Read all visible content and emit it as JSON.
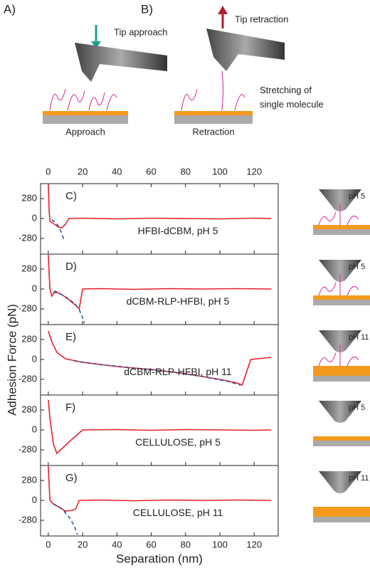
{
  "schematic": {
    "panel_a": "A)",
    "panel_b": "B)",
    "approach_arrow": "Tip approach",
    "retraction_arrow": "Tip retraction",
    "stretch_note": "Stretching of single molecule",
    "approach_caption": "Approach",
    "retraction_caption": "Retraction"
  },
  "chart_data": [
    {
      "type": "line",
      "label": "C)",
      "subtitle": "HFBI-dCBM, pH 5",
      "side_label": "pH 5",
      "xlim": [
        -4.5,
        134
      ],
      "xticks": [
        0,
        20,
        40,
        60,
        80,
        100,
        120
      ],
      "ylim": [
        -500,
        490
      ],
      "yticks": [
        280,
        0,
        -280
      ],
      "series": [
        {
          "color": "#e8202a",
          "x": [
            0,
            0.5,
            1,
            3,
            6,
            8,
            10,
            12,
            20,
            40,
            60,
            80,
            100,
            120,
            130
          ],
          "values": [
            480,
            100,
            -40,
            -70,
            -120,
            -130,
            -80,
            0,
            5,
            -5,
            5,
            0,
            -5,
            5,
            0
          ]
        },
        {
          "color": "#2a4fa8",
          "dash": true,
          "x": [
            2,
            4,
            6,
            7,
            8,
            9
          ],
          "values": [
            -20,
            -50,
            -110,
            -160,
            -220,
            -290
          ]
        }
      ]
    },
    {
      "type": "line",
      "label": "D)",
      "subtitle": "dCBM-RLP-HFBI, pH 5",
      "side_label": "pH 5",
      "xlim": [
        -4.5,
        134
      ],
      "xticks": [
        0,
        20,
        40,
        60,
        80,
        100,
        120
      ],
      "ylim": [
        -500,
        490
      ],
      "yticks": [
        280,
        0,
        -280
      ],
      "series": [
        {
          "color": "#e8202a",
          "x": [
            0,
            0.5,
            1,
            2,
            4,
            8,
            12,
            16,
            18,
            20,
            30,
            50,
            70,
            90,
            110,
            130
          ],
          "values": [
            480,
            200,
            0,
            -100,
            -30,
            -80,
            -150,
            -230,
            -280,
            0,
            5,
            -5,
            5,
            0,
            5,
            0
          ]
        },
        {
          "color": "#2a4fa8",
          "dash": true,
          "x": [
            3,
            8,
            12,
            16,
            18,
            20,
            21
          ],
          "values": [
            -40,
            -80,
            -140,
            -220,
            -290,
            -400,
            -480
          ]
        }
      ]
    },
    {
      "type": "line",
      "label": "E)",
      "subtitle": "dCBM-RLP-HFBI, pH 11",
      "side_label": "pH 11",
      "ylabel": "Adhesion Force (pN)",
      "xlim": [
        -4.5,
        134
      ],
      "xticks": [
        0,
        20,
        40,
        60,
        80,
        100,
        120
      ],
      "ylim": [
        -500,
        490
      ],
      "yticks": [
        280,
        0,
        -280
      ],
      "series": [
        {
          "color": "#e8202a",
          "x": [
            0,
            2,
            5,
            10,
            20,
            40,
            60,
            80,
            100,
            110,
            113,
            118,
            130
          ],
          "values": [
            400,
            250,
            100,
            10,
            -40,
            -100,
            -140,
            -200,
            -280,
            -330,
            -360,
            0,
            30
          ]
        },
        {
          "color": "#2a4fa8",
          "dash": true,
          "x": [
            15,
            30,
            50,
            70,
            90,
            105,
            112
          ],
          "values": [
            -20,
            -70,
            -120,
            -170,
            -240,
            -310,
            -360
          ]
        }
      ]
    },
    {
      "type": "line",
      "label": "F)",
      "subtitle": "CELLULOSE, pH 5",
      "side_label": "pH 5",
      "xlim": [
        -4.5,
        134
      ],
      "xticks": [
        0,
        20,
        40,
        60,
        80,
        100,
        120
      ],
      "ylim": [
        -500,
        490
      ],
      "yticks": [
        280,
        0,
        -280
      ],
      "series": [
        {
          "color": "#e8202a",
          "x": [
            0,
            1,
            3,
            5,
            12,
            20,
            40,
            60,
            80,
            100,
            120,
            130
          ],
          "values": [
            420,
            150,
            -200,
            -330,
            -170,
            0,
            5,
            -5,
            5,
            0,
            -5,
            0
          ]
        }
      ]
    },
    {
      "type": "line",
      "label": "G)",
      "subtitle": "CELLULOSE, pH 11",
      "side_label": "pH 11",
      "xlabel": "Separation (nm)",
      "xlim": [
        -4.5,
        134
      ],
      "xticks": [
        0,
        20,
        40,
        60,
        80,
        100,
        120
      ],
      "ylim": [
        -500,
        490
      ],
      "yticks": [
        280,
        0,
        -280
      ],
      "series": [
        {
          "color": "#e8202a",
          "x": [
            0,
            0.5,
            1,
            3,
            6,
            10,
            14,
            16,
            18,
            30,
            50,
            70,
            90,
            110,
            130
          ],
          "values": [
            480,
            200,
            0,
            -50,
            -90,
            -150,
            -140,
            -120,
            0,
            5,
            -5,
            5,
            0,
            5,
            0
          ]
        },
        {
          "color": "#2a4fa8",
          "dash": true,
          "x": [
            3,
            8,
            12,
            15,
            17
          ],
          "values": [
            -50,
            -120,
            -230,
            -350,
            -480
          ]
        }
      ]
    }
  ]
}
